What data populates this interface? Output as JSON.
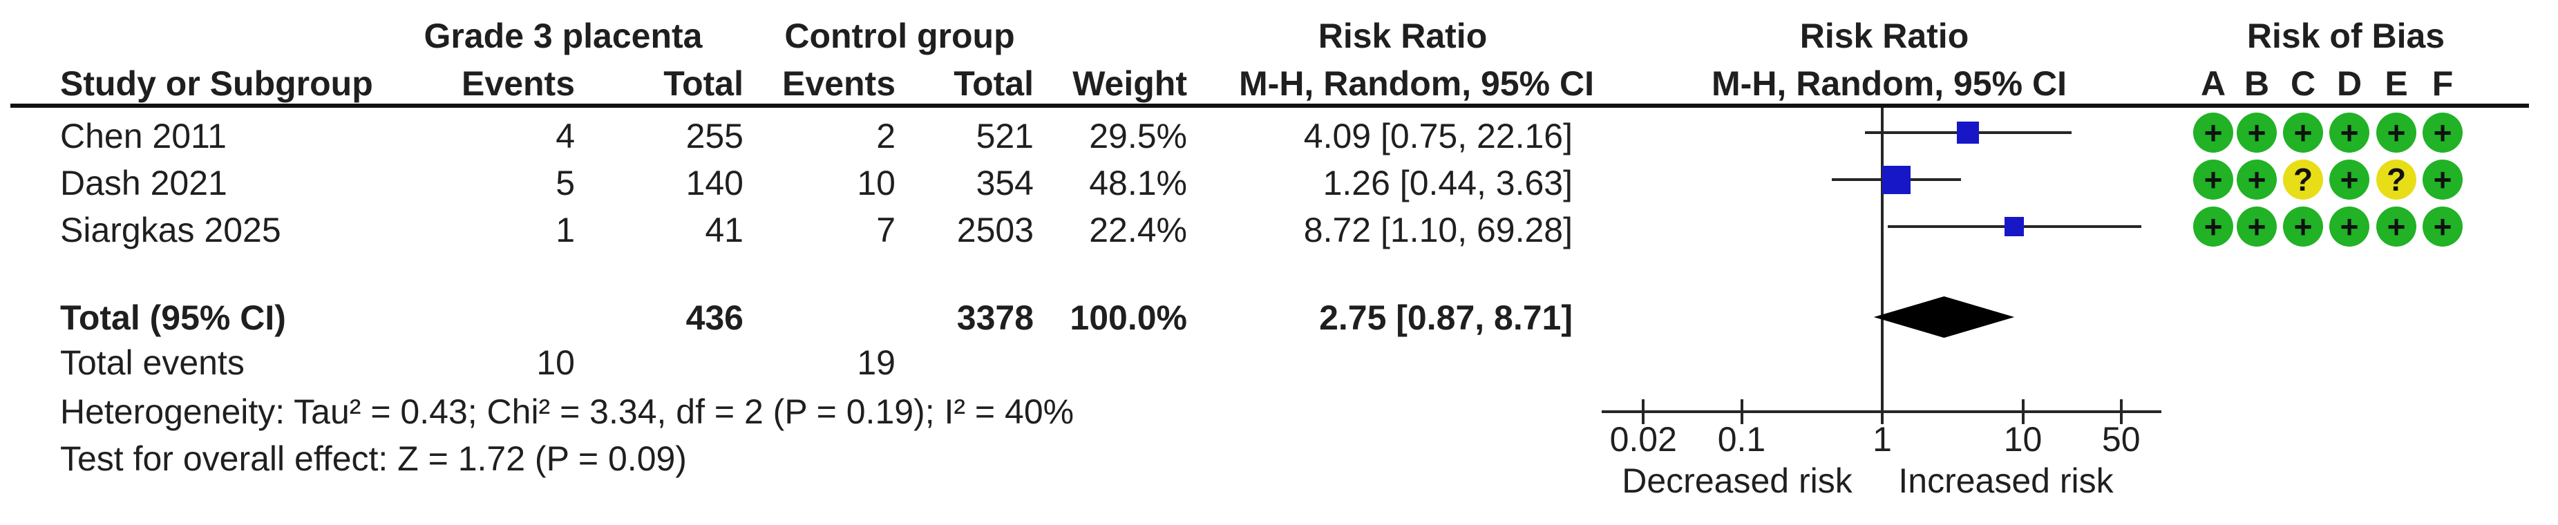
{
  "columns": {
    "study": "Study or Subgroup",
    "group1_name": "Grade 3 placenta",
    "group2_name": "Control group",
    "events1": "Events",
    "total1": "Total",
    "events2": "Events",
    "total2": "Total",
    "weight": "Weight",
    "rr_text_title": "Risk Ratio",
    "rr_text_sub": "M-H, Random, 95% CI",
    "rr_plot_title": "Risk Ratio",
    "rr_plot_sub": "M-H, Random, 95% CI",
    "rob_title": "Risk of Bias",
    "rob_letters": [
      "A",
      "B",
      "C",
      "D",
      "E",
      "F"
    ]
  },
  "rows": [
    {
      "study": "Chen 2011",
      "e1": "4",
      "t1": "255",
      "e2": "2",
      "t2": "521",
      "weight": "29.5%",
      "rr_text": "4.09 [0.75, 22.16]"
    },
    {
      "study": "Dash 2021",
      "e1": "5",
      "t1": "140",
      "e2": "10",
      "t2": "354",
      "weight": "48.1%",
      "rr_text": "1.26 [0.44, 3.63]"
    },
    {
      "study": "Siargkas 2025",
      "e1": "1",
      "t1": "41",
      "e2": "7",
      "t2": "2503",
      "weight": "22.4%",
      "rr_text": "8.72 [1.10, 69.28]"
    }
  ],
  "totals": {
    "label": "Total (95% CI)",
    "t1": "436",
    "t2": "3378",
    "weight": "100.0%",
    "rr_text": "2.75 [0.87, 8.71]",
    "events_label": "Total events",
    "e1": "10",
    "e2": "19"
  },
  "stats": {
    "heterogeneity": "Heterogeneity: Tau² = 0.43; Chi² = 3.34, df = 2 (P = 0.19); I² = 40%",
    "overall_effect": "Test for overall effect: Z = 1.72 (P = 0.09)"
  },
  "axis": {
    "tick_labels": [
      "0.02",
      "0.1",
      "1",
      "10",
      "50"
    ],
    "left_label": "Decreased risk",
    "right_label": "Increased risk"
  },
  "chart_data": {
    "type": "forest",
    "scale": "log10",
    "x_ticks": [
      0.02,
      0.1,
      1,
      10,
      50
    ],
    "xlim": [
      0.0105,
      98
    ],
    "effect_measure": "Risk Ratio, M-H, Random, 95% CI",
    "studies": [
      {
        "name": "Chen 2011",
        "events_exp": 4,
        "total_exp": 255,
        "events_ctrl": 2,
        "total_ctrl": 521,
        "weight_pct": 29.5,
        "rr": 4.09,
        "ci_low": 0.75,
        "ci_high": 22.16
      },
      {
        "name": "Dash 2021",
        "events_exp": 5,
        "total_exp": 140,
        "events_ctrl": 10,
        "total_ctrl": 354,
        "weight_pct": 48.1,
        "rr": 1.26,
        "ci_low": 0.44,
        "ci_high": 3.63
      },
      {
        "name": "Siargkas 2025",
        "events_exp": 1,
        "total_exp": 41,
        "events_ctrl": 7,
        "total_ctrl": 2503,
        "weight_pct": 22.4,
        "rr": 8.72,
        "ci_low": 1.1,
        "ci_high": 69.28
      }
    ],
    "pooled": {
      "rr": 2.75,
      "ci_low": 0.87,
      "ci_high": 8.71,
      "total_exp": 436,
      "total_ctrl": 3378,
      "weight_pct": 100.0
    },
    "risk_of_bias": [
      [
        "+",
        "+",
        "+",
        "+",
        "+",
        "+"
      ],
      [
        "+",
        "+",
        "?",
        "+",
        "?",
        "+"
      ],
      [
        "+",
        "+",
        "+",
        "+",
        "+",
        "+"
      ]
    ],
    "colors": {
      "square": "#1717c8",
      "diamond": "#000000",
      "low_risk": "#21b226",
      "unclear_risk": "#e7de18"
    }
  }
}
